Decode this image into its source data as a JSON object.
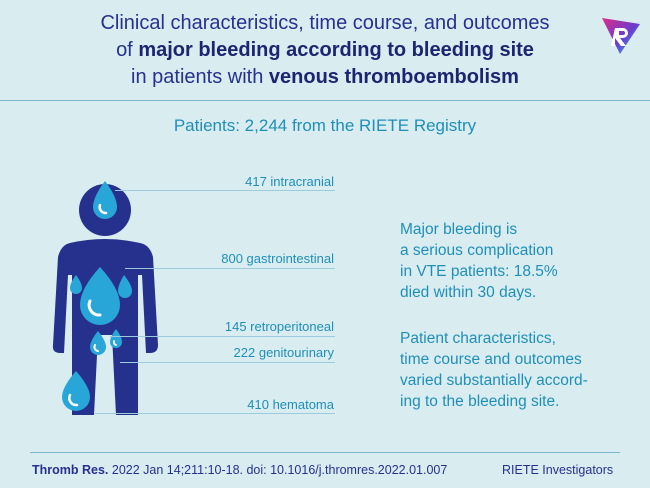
{
  "title": {
    "line1": "Clinical characteristics, time course, and outcomes",
    "line2_prefix": "of ",
    "line2_bold": "major bleeding according to bleeding site",
    "line3_prefix": "in patients with ",
    "line3_bold": "venous thromboembolism"
  },
  "subtitle": "Patients: 2,244 from the RIETE Registry",
  "bleeding_sites": [
    {
      "label": "417 intracranial"
    },
    {
      "label": "800 gastrointestinal"
    },
    {
      "label": "145 retroperitoneal"
    },
    {
      "label": "222 genitourinary"
    },
    {
      "label": "410 hematoma"
    }
  ],
  "side_text": {
    "para1": [
      "Major bleeding is",
      "a serious complication",
      "in VTE patients: 18.5%",
      "died within 30 days."
    ],
    "para2": [
      "Patient characteristics,",
      "time course and outcomes",
      "varied substantially accord-",
      "ing to the bleeding site."
    ]
  },
  "footer": {
    "journal": "Thromb Res.",
    "citation": " 2022 Jan 14;211:10-18. doi: 10.1016/j.thromres.2022.01.007",
    "credit": "RIETE Investigators"
  },
  "colors": {
    "background": "#d9ecf0",
    "navy": "#26318e",
    "accent": "#1f8fb8",
    "drop": "#29a6d8"
  },
  "icons": {
    "logo": "riete-logo-icon",
    "figure": "human-silhouette-icon",
    "drop": "blood-drop-icon"
  }
}
